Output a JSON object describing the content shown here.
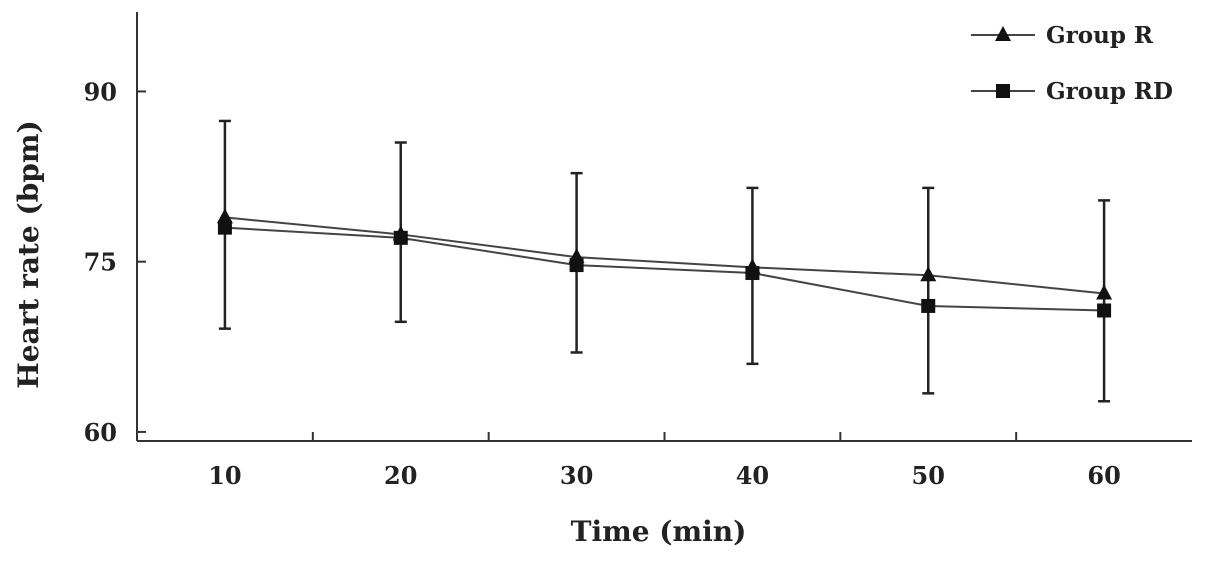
{
  "chart_data": {
    "type": "line",
    "title": "",
    "xlabel": "Time (min)",
    "ylabel": "Heart rate (bpm)",
    "x": [
      10,
      20,
      30,
      40,
      50,
      60
    ],
    "x_tick_labels": [
      "10",
      "20",
      "30",
      "40",
      "50",
      "60"
    ],
    "y_ticks": [
      60,
      75,
      90
    ],
    "y_tick_labels": [
      "60",
      "75",
      "90"
    ],
    "ylim": [
      59.2,
      97
    ],
    "grid": false,
    "legend_position": "top-right",
    "series": [
      {
        "name": "Group R",
        "marker": "triangle",
        "values": [
          78.9,
          77.4,
          75.4,
          74.5,
          73.8,
          72.2
        ],
        "error_upper": [
          87.4,
          85.5,
          82.8,
          81.5,
          81.5,
          80.4
        ],
        "error_lower": [
          69.1,
          69.7,
          67.0,
          66.0,
          63.4,
          62.7
        ]
      },
      {
        "name": "Group RD",
        "marker": "square",
        "values": [
          78.0,
          77.1,
          74.7,
          74.0,
          71.1,
          70.7
        ],
        "error_upper": [],
        "error_lower": []
      }
    ]
  }
}
